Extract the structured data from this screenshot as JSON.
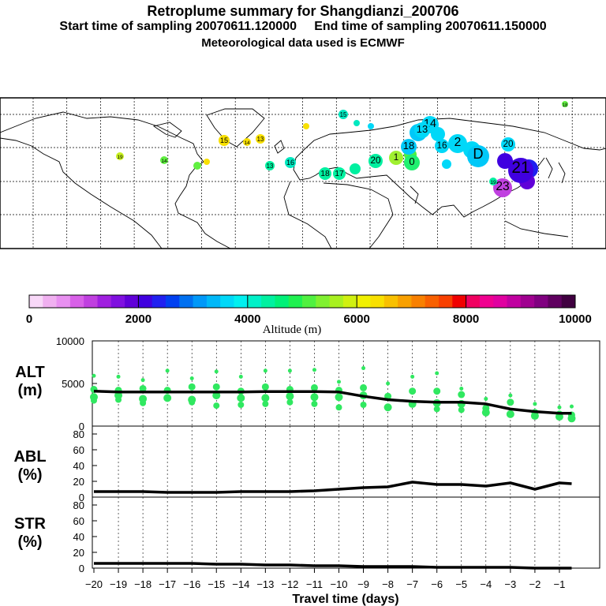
{
  "header": {
    "title": "Retroplume summary for Shangdianzi_200706",
    "start_label": "Start time of sampling 20070611.120000",
    "end_label": "End time of sampling 20070611.150000",
    "met_label": "Meteorological data used is ECMWF"
  },
  "colorbar": {
    "xlabel": "Altitude (m)",
    "ticks": [
      "0",
      "2000",
      "4000",
      "6000",
      "8000",
      "10000"
    ],
    "colors": [
      "#f8d8f8",
      "#f0b0f0",
      "#e890f0",
      "#d860e8",
      "#c040e0",
      "#a020e0",
      "#8010e0",
      "#6000d8",
      "#4000e0",
      "#2020f0",
      "#0040f0",
      "#0070f0",
      "#0098f8",
      "#00b8f8",
      "#00d8f8",
      "#00f0f0",
      "#00f0c8",
      "#00f0a0",
      "#00f078",
      "#20f050",
      "#50f040",
      "#80f030",
      "#a8f020",
      "#d0f010",
      "#f0f000",
      "#f8e000",
      "#f8c000",
      "#f8a000",
      "#f88000",
      "#f86000",
      "#f84000",
      "#f00000",
      "#f00060",
      "#f00090",
      "#e000a0",
      "#c000a0",
      "#a00090",
      "#800080",
      "#600060",
      "#400040"
    ]
  },
  "map_labels": [
    {
      "text": "18",
      "c": "#60f040"
    },
    {
      "text": "15",
      "c": "#00e8c0"
    },
    {
      "text": "15",
      "c": "#f8e000"
    },
    {
      "text": "14",
      "c": "#f8e000"
    },
    {
      "text": "13",
      "c": "#f8e000"
    },
    {
      "text": "19",
      "c": "#c8f020"
    },
    {
      "text": "14",
      "c": "#60f040"
    },
    {
      "text": "13",
      "c": "#00f0a0"
    },
    {
      "text": "16",
      "c": "#00e8c0"
    },
    {
      "text": "18",
      "c": "#00f0a0"
    },
    {
      "text": "17",
      "c": "#00f0a0"
    },
    {
      "text": "20",
      "c": "#00f0a0"
    },
    {
      "text": "1",
      "c": "#a0f030"
    },
    {
      "text": "0",
      "c": "#20f070"
    },
    {
      "text": "18",
      "c": "#00c8f8"
    },
    {
      "text": "14",
      "c": "#00d8f8"
    },
    {
      "text": "13",
      "c": "#00d8f8"
    },
    {
      "text": "16",
      "c": "#00d8f8"
    },
    {
      "text": "2",
      "c": "#00d8f8"
    },
    {
      "text": "20",
      "c": "#00d8f8"
    },
    {
      "text": "D",
      "c": "#00c8f8"
    },
    {
      "text": "21",
      "c": "#4000e0"
    },
    {
      "text": "23",
      "c": "#c040e0"
    },
    {
      "text": "19",
      "c": "#00f0a0"
    }
  ],
  "chart_data": [
    {
      "type": "scatter",
      "name": "ALT",
      "ylabel": "ALT (m)",
      "ylim": [
        0,
        10000
      ],
      "yticks": [
        "0",
        "5000",
        "10000"
      ],
      "x": [
        -20,
        -19,
        -18,
        -17,
        -16,
        -15,
        -14,
        -13,
        -12,
        -11,
        -10,
        -9,
        -8,
        -7,
        -6,
        -5,
        -4,
        -3,
        -2,
        -1,
        -0.5
      ],
      "series": [
        {
          "name": "median altitude",
          "values": [
            4100,
            4000,
            4000,
            4000,
            4000,
            4000,
            4000,
            4050,
            4050,
            4050,
            4000,
            3500,
            3100,
            2900,
            2800,
            2800,
            2600,
            2000,
            1700,
            1500,
            1500
          ]
        }
      ],
      "clusters": [
        {
          "x": -20,
          "y": [
            5900,
            4300,
            3400,
            3000
          ]
        },
        {
          "x": -19,
          "y": [
            5800,
            4200,
            3600,
            3100
          ]
        },
        {
          "x": -18,
          "y": [
            5400,
            4400,
            3200,
            2700
          ]
        },
        {
          "x": -17,
          "y": [
            6500,
            4200,
            3300
          ]
        },
        {
          "x": -16,
          "y": [
            5600,
            4600,
            3100,
            2800
          ]
        },
        {
          "x": -15,
          "y": [
            6400,
            4600,
            3600,
            2400
          ]
        },
        {
          "x": -14,
          "y": [
            5800,
            4100,
            3300,
            2500
          ]
        },
        {
          "x": -13,
          "y": [
            6500,
            4600,
            3300,
            2600
          ]
        },
        {
          "x": -12,
          "y": [
            6500,
            4300,
            3500,
            2800
          ]
        },
        {
          "x": -11,
          "y": [
            6600,
            4500,
            3400,
            2600
          ]
        },
        {
          "x": -10,
          "y": [
            5200,
            4200,
            3400,
            2200
          ]
        },
        {
          "x": -9,
          "y": [
            6800,
            4500,
            3600,
            2500
          ]
        },
        {
          "x": -8,
          "y": [
            5000,
            3500,
            2200
          ]
        },
        {
          "x": -7,
          "y": [
            5800,
            4100,
            2600
          ]
        },
        {
          "x": -6,
          "y": [
            6200,
            4100,
            2700,
            2000
          ]
        },
        {
          "x": -5,
          "y": [
            4400,
            3700,
            2600,
            1900
          ]
        },
        {
          "x": -4,
          "y": [
            3200,
            2100,
            1600
          ]
        },
        {
          "x": -3,
          "y": [
            3600,
            2800,
            1400
          ]
        },
        {
          "x": -2,
          "y": [
            2600,
            1600,
            1200
          ]
        },
        {
          "x": -1,
          "y": [
            2200,
            1400,
            1100
          ]
        },
        {
          "x": -0.5,
          "y": [
            2300,
            1300,
            900
          ]
        }
      ]
    },
    {
      "type": "line",
      "name": "ABL",
      "ylabel": "ABL (%)",
      "ylim": [
        0,
        90
      ],
      "yticks": [
        "0",
        "20",
        "40",
        "60",
        "80"
      ],
      "x": [
        -20,
        -19,
        -18,
        -17,
        -16,
        -15,
        -14,
        -13,
        -12,
        -11,
        -10,
        -9,
        -8,
        -7,
        -6,
        -5,
        -4,
        -3,
        -2,
        -1,
        -0.5
      ],
      "series": [
        {
          "name": "ABL fraction",
          "values": [
            7,
            7,
            7,
            6,
            6,
            6,
            7,
            7,
            7,
            8,
            10,
            12,
            13,
            19,
            16,
            16,
            14,
            18,
            10,
            18,
            17
          ]
        }
      ]
    },
    {
      "type": "line",
      "name": "STR",
      "ylabel": "STR (%)",
      "ylim": [
        0,
        90
      ],
      "yticks": [
        "0",
        "20",
        "40",
        "60",
        "80"
      ],
      "xlabel": "Travel time (days)",
      "xticks": [
        "−20",
        "−19",
        "−18",
        "−17",
        "−16",
        "−15",
        "−14",
        "−13",
        "−12",
        "−11",
        "−10",
        "−9",
        "−8",
        "−7",
        "−6",
        "−5",
        "−4",
        "−3",
        "−2",
        "−1"
      ],
      "x": [
        -20,
        -19,
        -18,
        -17,
        -16,
        -15,
        -14,
        -13,
        -12,
        -11,
        -10,
        -9,
        -8,
        -7,
        -6,
        -5,
        -4,
        -3,
        -2,
        -1,
        -0.5
      ],
      "series": [
        {
          "name": "stratospheric fraction",
          "values": [
            6,
            6,
            6,
            6,
            6,
            5,
            5,
            4,
            4,
            3,
            3,
            2,
            2,
            2,
            1,
            1,
            1,
            1,
            0,
            0,
            0
          ]
        }
      ]
    }
  ]
}
